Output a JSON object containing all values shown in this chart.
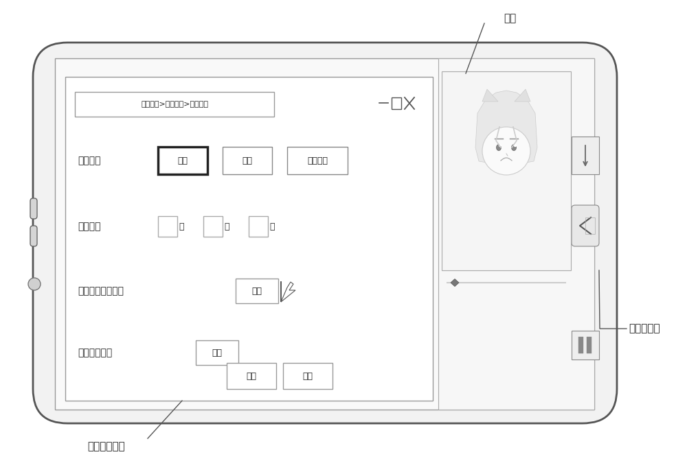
{
  "bg_color": "#ffffff",
  "title_bar_text": "互动设置>输入方式>文本方式",
  "label_row1": "互动类型",
  "label_row2": "互动时长",
  "label_row3": "互动区域划分方式",
  "label_row4": "互动区域标签",
  "btn_vote": "投票",
  "btn_grab": "抢答",
  "btn_search": "物品搜索",
  "btn_set1": "设置",
  "btn_set2": "设置",
  "btn_ok": "确定",
  "btn_back": "返回",
  "time_labels": [
    "时",
    "分",
    "秒"
  ],
  "annotation_host": "主播",
  "annotation_client": "主播客户端",
  "annotation_interface": "互动设置界面",
  "font_size_label": 10,
  "font_size_btn": 9,
  "font_size_annot": 11,
  "font_size_title": 8
}
